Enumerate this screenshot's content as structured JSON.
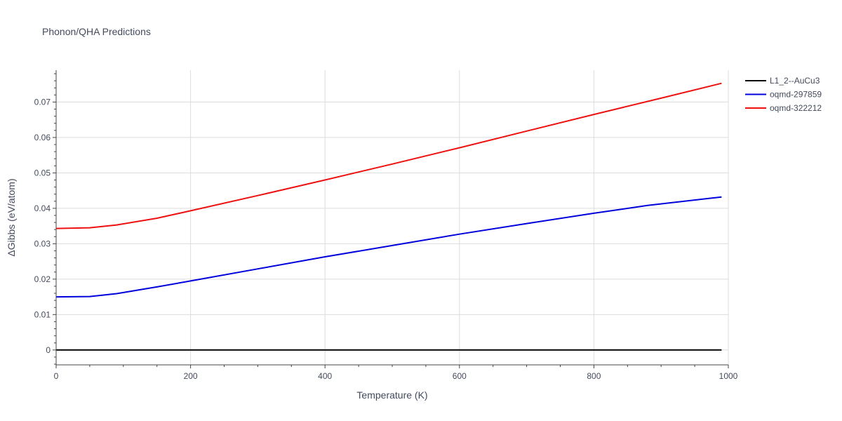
{
  "chart_data": {
    "type": "line",
    "title": "Phonon/QHA Predictions",
    "xlabel": "Temperature (K)",
    "ylabel": "ΔGibbs (eV/atom)",
    "xlim": [
      0,
      1000
    ],
    "ylim": [
      -0.0042,
      0.079
    ],
    "grid": true,
    "legend_position": "top-right",
    "x_ticks": [
      0,
      200,
      400,
      600,
      800,
      1000
    ],
    "x_tick_labels": [
      "0",
      "200",
      "400",
      "600",
      "800",
      "1000"
    ],
    "y_ticks": [
      0,
      0.01,
      0.02,
      0.03,
      0.04,
      0.05,
      0.06,
      0.07
    ],
    "y_tick_labels": [
      "0",
      "0.01",
      "0.02",
      "0.03",
      "0.04",
      "0.05",
      "0.06",
      "0.07"
    ],
    "series": [
      {
        "name": "L1_2--AuCu3",
        "color": "#000000",
        "x": [
          0,
          100,
          200,
          300,
          400,
          500,
          600,
          700,
          800,
          900,
          990
        ],
        "y": [
          0,
          0,
          0,
          0,
          0,
          0,
          0,
          0,
          0,
          0,
          0
        ]
      },
      {
        "name": "oqmd-297859",
        "color": "#0000dd",
        "x": [
          0,
          50,
          90,
          150,
          200,
          300,
          400,
          500,
          600,
          700,
          800,
          880,
          990
        ],
        "y": [
          0.015,
          0.0151,
          0.0159,
          0.0178,
          0.0195,
          0.0229,
          0.0263,
          0.0295,
          0.0327,
          0.0357,
          0.0386,
          0.0408,
          0.0432
        ]
      },
      {
        "name": "oqmd-322212",
        "color": "#ee1111",
        "x": [
          0,
          50,
          90,
          150,
          200,
          300,
          400,
          500,
          600,
          700,
          800,
          900,
          990
        ],
        "y": [
          0.0343,
          0.0345,
          0.0353,
          0.0372,
          0.0393,
          0.0436,
          0.048,
          0.0525,
          0.0571,
          0.0618,
          0.0665,
          0.0711,
          0.0753
        ]
      }
    ]
  }
}
